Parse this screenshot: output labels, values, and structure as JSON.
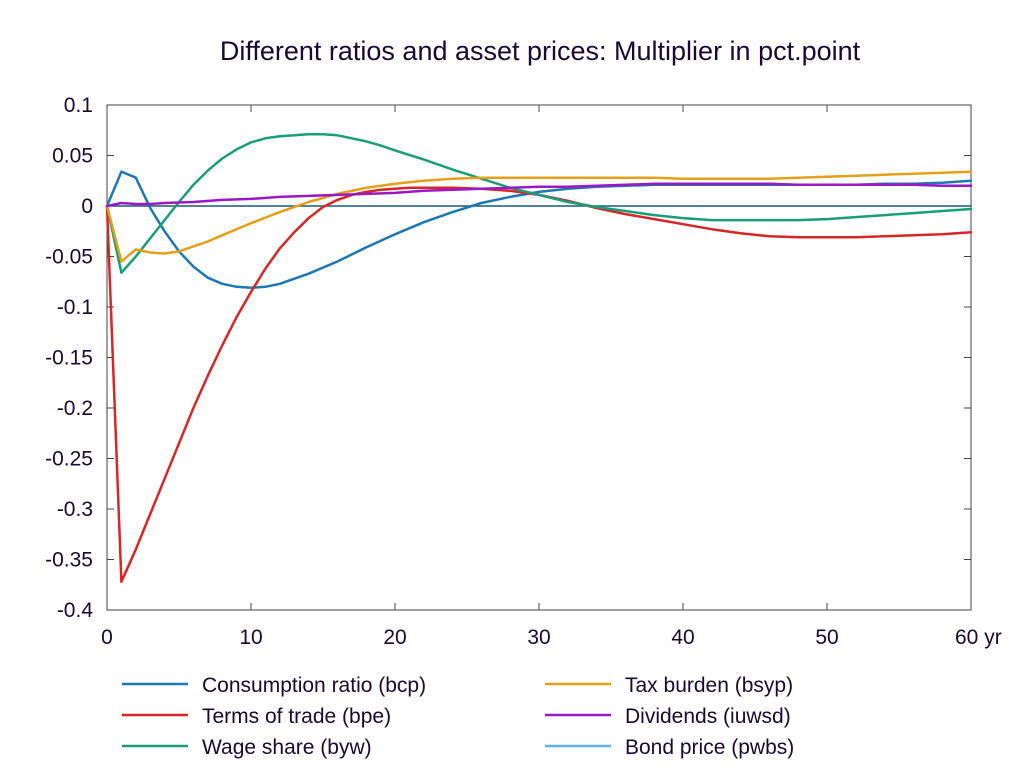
{
  "chart_data": {
    "type": "line",
    "title": "Different ratios and asset prices: Multiplier in pct.point",
    "xlabel": "",
    "ylabel": "",
    "x_unit": "yr",
    "xlim": [
      0,
      60
    ],
    "ylim": [
      -0.4,
      0.1
    ],
    "x_ticks": [
      0,
      10,
      20,
      30,
      40,
      50,
      60
    ],
    "x_tick_labels": [
      "0",
      "10",
      "20",
      "30",
      "40",
      "50",
      "60 yr"
    ],
    "y_ticks": [
      0.1,
      0.05,
      0,
      -0.05,
      -0.1,
      -0.15,
      -0.2,
      -0.25,
      -0.3,
      -0.35,
      -0.4
    ],
    "y_tick_labels": [
      "0.1",
      "0.05",
      "0",
      "-0.05",
      "-0.1",
      "-0.15",
      "-0.2",
      "-0.25",
      "-0.3",
      "-0.35",
      "-0.4"
    ],
    "grid": false,
    "legend_position": "bottom",
    "series": [
      {
        "name": "Consumption ratio (bcp)",
        "color": "#1f77b4",
        "x": [
          0,
          1,
          2,
          3,
          4,
          5,
          6,
          7,
          8,
          9,
          10,
          11,
          12,
          14,
          16,
          18,
          20,
          22,
          24,
          26,
          28,
          30,
          32,
          34,
          36,
          38,
          40,
          42,
          44,
          46,
          48,
          50,
          52,
          54,
          56,
          58,
          60
        ],
        "y": [
          0,
          0.034,
          0.028,
          -0.002,
          -0.025,
          -0.045,
          -0.06,
          -0.071,
          -0.077,
          -0.08,
          -0.081,
          -0.08,
          -0.077,
          -0.067,
          -0.055,
          -0.041,
          -0.028,
          -0.016,
          -0.006,
          0.003,
          0.009,
          0.014,
          0.017,
          0.019,
          0.02,
          0.021,
          0.021,
          0.021,
          0.021,
          0.021,
          0.021,
          0.021,
          0.021,
          0.022,
          0.022,
          0.023,
          0.025
        ]
      },
      {
        "name": "Terms of trade (bpe)",
        "color": "#d62728",
        "x": [
          0,
          1,
          2,
          3,
          4,
          5,
          6,
          7,
          8,
          9,
          10,
          11,
          12,
          13,
          14,
          15,
          16,
          17,
          18,
          19,
          20,
          21,
          22,
          24,
          26,
          28,
          30,
          32,
          34,
          36,
          38,
          40,
          42,
          44,
          46,
          48,
          50,
          52,
          54,
          56,
          58,
          60
        ],
        "y": [
          0,
          -0.372,
          -0.34,
          -0.305,
          -0.27,
          -0.235,
          -0.2,
          -0.168,
          -0.138,
          -0.11,
          -0.085,
          -0.062,
          -0.042,
          -0.026,
          -0.012,
          -0.001,
          0.006,
          0.011,
          0.014,
          0.016,
          0.017,
          0.018,
          0.018,
          0.018,
          0.017,
          0.015,
          0.011,
          0.005,
          -0.002,
          -0.008,
          -0.013,
          -0.018,
          -0.023,
          -0.027,
          -0.03,
          -0.031,
          -0.031,
          -0.031,
          -0.03,
          -0.029,
          -0.028,
          -0.026
        ]
      },
      {
        "name": "Wage share (byw)",
        "color": "#1a9e77",
        "x": [
          0,
          1,
          2,
          3,
          4,
          5,
          6,
          7,
          8,
          9,
          10,
          11,
          12,
          13,
          14,
          15,
          16,
          17,
          18,
          19,
          20,
          22,
          24,
          26,
          28,
          30,
          32,
          34,
          36,
          38,
          40,
          42,
          44,
          46,
          48,
          50,
          52,
          54,
          56,
          58,
          60
        ],
        "y": [
          0,
          -0.066,
          -0.05,
          -0.032,
          -0.014,
          0.004,
          0.021,
          0.035,
          0.047,
          0.056,
          0.063,
          0.067,
          0.069,
          0.07,
          0.071,
          0.071,
          0.07,
          0.067,
          0.064,
          0.06,
          0.055,
          0.046,
          0.036,
          0.027,
          0.018,
          0.011,
          0.004,
          -0.001,
          -0.005,
          -0.009,
          -0.012,
          -0.014,
          -0.014,
          -0.014,
          -0.014,
          -0.013,
          -0.011,
          -0.009,
          -0.007,
          -0.005,
          -0.003
        ]
      },
      {
        "name": "Tax burden (bsyp)",
        "color": "#e5a01a",
        "x": [
          0,
          1,
          2,
          3,
          4,
          5,
          6,
          7,
          8,
          9,
          10,
          12,
          14,
          16,
          18,
          20,
          22,
          24,
          26,
          28,
          30,
          32,
          34,
          36,
          38,
          40,
          42,
          44,
          46,
          48,
          50,
          52,
          54,
          56,
          58,
          60
        ],
        "y": [
          0,
          -0.055,
          -0.043,
          -0.046,
          -0.047,
          -0.045,
          -0.04,
          -0.035,
          -0.029,
          -0.023,
          -0.017,
          -0.006,
          0.004,
          0.012,
          0.018,
          0.022,
          0.025,
          0.027,
          0.028,
          0.028,
          0.028,
          0.028,
          0.028,
          0.028,
          0.028,
          0.027,
          0.027,
          0.027,
          0.027,
          0.028,
          0.029,
          0.03,
          0.031,
          0.032,
          0.033,
          0.034
        ]
      },
      {
        "name": "Dividends (iuwsd)",
        "color": "#9b19c4",
        "x": [
          0,
          1,
          2,
          3,
          4,
          6,
          8,
          10,
          12,
          14,
          16,
          18,
          20,
          22,
          24,
          26,
          28,
          30,
          32,
          34,
          36,
          38,
          40,
          42,
          44,
          46,
          48,
          50,
          52,
          54,
          56,
          58,
          60
        ],
        "y": [
          0,
          0.003,
          0.002,
          0.002,
          0.003,
          0.004,
          0.006,
          0.007,
          0.009,
          0.01,
          0.011,
          0.012,
          0.013,
          0.015,
          0.016,
          0.017,
          0.018,
          0.019,
          0.019,
          0.02,
          0.021,
          0.022,
          0.022,
          0.022,
          0.022,
          0.022,
          0.021,
          0.021,
          0.021,
          0.021,
          0.021,
          0.02,
          0.02
        ]
      },
      {
        "name": "Bond price (pwbs)",
        "color": "#5ab4e5",
        "x": [
          0,
          60
        ],
        "y": [
          0,
          0
        ]
      }
    ]
  }
}
